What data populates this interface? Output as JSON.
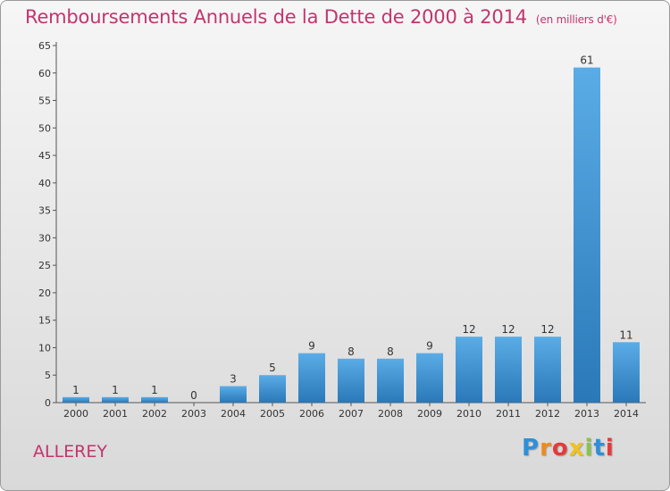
{
  "header": {
    "title": "Remboursements Annuels de la Dette de 2000 à 2014",
    "unit": "(en milliers d'€)"
  },
  "footer": {
    "commune": "ALLEREY",
    "logo": [
      "P",
      "r",
      "o",
      "x",
      "i",
      "t",
      "i"
    ],
    "logo_colors": [
      "#2f8fd8",
      "#f08a1c",
      "#e33b3b",
      "#f0c21c",
      "#8bc34a",
      "#2f8fd8",
      "#e33b3b"
    ]
  },
  "colors": {
    "title": "#c2356e",
    "bar_top": "#5aace6",
    "bar_bottom": "#2a78b8"
  },
  "chart_data": {
    "type": "bar",
    "categories": [
      "2000",
      "2001",
      "2002",
      "2003",
      "2004",
      "2005",
      "2006",
      "2007",
      "2008",
      "2009",
      "2010",
      "2011",
      "2012",
      "2013",
      "2014"
    ],
    "values": [
      1,
      1,
      1,
      0,
      3,
      5,
      9,
      8,
      8,
      9,
      12,
      12,
      12,
      61,
      11
    ],
    "ylim": [
      0,
      65
    ],
    "yticks": [
      0,
      5,
      10,
      15,
      20,
      25,
      30,
      35,
      40,
      45,
      50,
      55,
      60,
      65
    ],
    "grid": false
  }
}
